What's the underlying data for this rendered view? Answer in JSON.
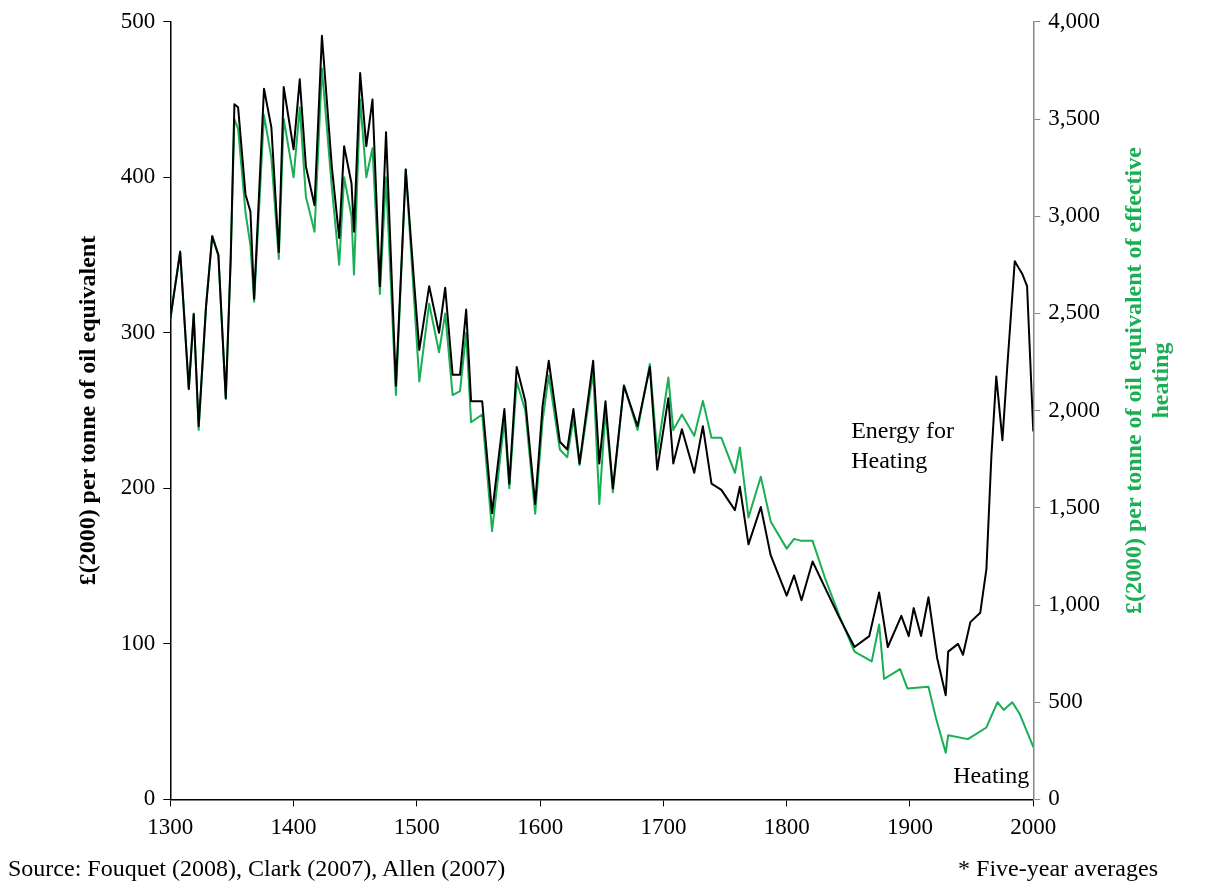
{
  "chart_data": {
    "type": "line",
    "xlim": [
      1300,
      2000
    ],
    "xticks": [
      1300,
      1400,
      1500,
      1600,
      1700,
      1800,
      1900,
      2000
    ],
    "ylim": [
      0,
      500
    ],
    "yticks": [
      0,
      100,
      200,
      300,
      400,
      500
    ],
    "y2lim": [
      0,
      4000
    ],
    "y2ticks": [
      0,
      {
        "value": 500,
        "label": "500"
      },
      {
        "value": 1000,
        "label": "1,000"
      },
      {
        "value": 1500,
        "label": "1,500"
      },
      {
        "value": 2000,
        "label": "2,000"
      },
      {
        "value": 2500,
        "label": "2,500"
      },
      {
        "value": 3000,
        "label": "3,000"
      },
      {
        "value": 3500,
        "label": "3,500"
      },
      {
        "value": 4000,
        "label": "4,000"
      }
    ],
    "ylabel": "£(2000) per tonne of oil equivalent",
    "y2label": "£(2000) per tonne of oil equivalent of effective heating",
    "grid": false,
    "legend": false,
    "marker": "none",
    "line_style": "solid",
    "annotations": [
      "Source: Fouquet (2008), Clark (2007), Allen (2007)",
      "* Five-year averages"
    ],
    "series": [
      {
        "name": "Energy for Heating",
        "color": "#000000",
        "axis": "y",
        "x": [
          1300,
          1308,
          1315,
          1319,
          1323,
          1329,
          1334,
          1339,
          1345,
          1349,
          1352,
          1355,
          1361,
          1365,
          1368,
          1376,
          1382,
          1388,
          1392,
          1400,
          1405,
          1410,
          1417,
          1423,
          1431,
          1437,
          1441,
          1447,
          1449,
          1454,
          1459,
          1464,
          1470,
          1475,
          1483,
          1491,
          1498,
          1502,
          1510,
          1518,
          1523,
          1529,
          1535,
          1540,
          1544,
          1553,
          1561,
          1571,
          1575,
          1581,
          1588,
          1596,
          1602,
          1607,
          1616,
          1622,
          1627,
          1632,
          1643,
          1648,
          1653,
          1659,
          1668,
          1679,
          1689,
          1695,
          1704,
          1708,
          1715,
          1725,
          1732,
          1739,
          1747,
          1758,
          1762,
          1769,
          1779,
          1787,
          1800,
          1806,
          1812,
          1821,
          1833,
          1842,
          1855,
          1867,
          1875,
          1882,
          1893,
          1899,
          1903,
          1909,
          1915,
          1922,
          1929,
          1931,
          1939,
          1943,
          1949,
          1957,
          1962,
          1966,
          1970,
          1975,
          1979,
          1985,
          1991,
          1995,
          2000
        ],
        "values": [
          309,
          352,
          264,
          312,
          240,
          317,
          362,
          350,
          258,
          348,
          447,
          445,
          389,
          378,
          322,
          457,
          432,
          352,
          458,
          418,
          463,
          407,
          382,
          491,
          407,
          361,
          420,
          396,
          365,
          467,
          420,
          450,
          330,
          429,
          266,
          405,
          330,
          289,
          330,
          300,
          329,
          273,
          273,
          315,
          256,
          256,
          184,
          251,
          203,
          278,
          256,
          190,
          253,
          282,
          230,
          225,
          251,
          216,
          282,
          216,
          256,
          200,
          266,
          240,
          278,
          212,
          258,
          216,
          238,
          210,
          240,
          203,
          199,
          186,
          201,
          164,
          188,
          157,
          131,
          144,
          128,
          153,
          133,
          118,
          98,
          105,
          133,
          98,
          118,
          105,
          123,
          105,
          130,
          91,
          67,
          95,
          100,
          93,
          114,
          120,
          148,
          220,
          272,
          231,
          279,
          346,
          338,
          330,
          237
        ]
      },
      {
        "name": "Heating",
        "color": "#1aaf54",
        "axis": "y2",
        "x": [
          1300,
          1308,
          1315,
          1319,
          1323,
          1329,
          1334,
          1339,
          1345,
          1349,
          1352,
          1355,
          1361,
          1365,
          1368,
          1376,
          1382,
          1388,
          1392,
          1400,
          1405,
          1410,
          1417,
          1423,
          1431,
          1437,
          1441,
          1447,
          1449,
          1454,
          1459,
          1464,
          1470,
          1475,
          1483,
          1491,
          1498,
          1502,
          1510,
          1518,
          1523,
          1529,
          1535,
          1540,
          1544,
          1553,
          1561,
          1571,
          1575,
          1581,
          1588,
          1596,
          1602,
          1607,
          1616,
          1622,
          1627,
          1632,
          1643,
          1648,
          1653,
          1659,
          1668,
          1679,
          1689,
          1695,
          1704,
          1708,
          1715,
          1725,
          1732,
          1739,
          1747,
          1758,
          1762,
          1769,
          1779,
          1787,
          1800,
          1806,
          1812,
          1821,
          1831,
          1843,
          1855,
          1869,
          1875,
          1879,
          1892,
          1898,
          1915,
          1921,
          1929,
          1931,
          1947,
          1962,
          1971,
          1976,
          1983,
          1989,
          2000
        ],
        "values": [
          2470,
          2820,
          2110,
          2500,
          1900,
          2540,
          2900,
          2800,
          2060,
          2780,
          3500,
          3450,
          3020,
          2850,
          2560,
          3520,
          3300,
          2780,
          3500,
          3200,
          3560,
          3100,
          2920,
          3760,
          3150,
          2750,
          3200,
          3000,
          2700,
          3600,
          3200,
          3350,
          2600,
          3200,
          2080,
          3240,
          2550,
          2150,
          2550,
          2300,
          2500,
          2080,
          2100,
          2400,
          1940,
          1980,
          1380,
          1950,
          1600,
          2150,
          2000,
          1470,
          1950,
          2180,
          1800,
          1760,
          1960,
          1720,
          2200,
          1520,
          2000,
          1580,
          2130,
          1900,
          2240,
          1780,
          2170,
          1900,
          1980,
          1870,
          2050,
          1860,
          1860,
          1680,
          1810,
          1450,
          1660,
          1430,
          1290,
          1340,
          1330,
          1330,
          1140,
          940,
          760,
          710,
          900,
          620,
          670,
          570,
          580,
          420,
          240,
          330,
          310,
          370,
          500,
          460,
          500,
          440,
          270
        ]
      }
    ]
  }
}
